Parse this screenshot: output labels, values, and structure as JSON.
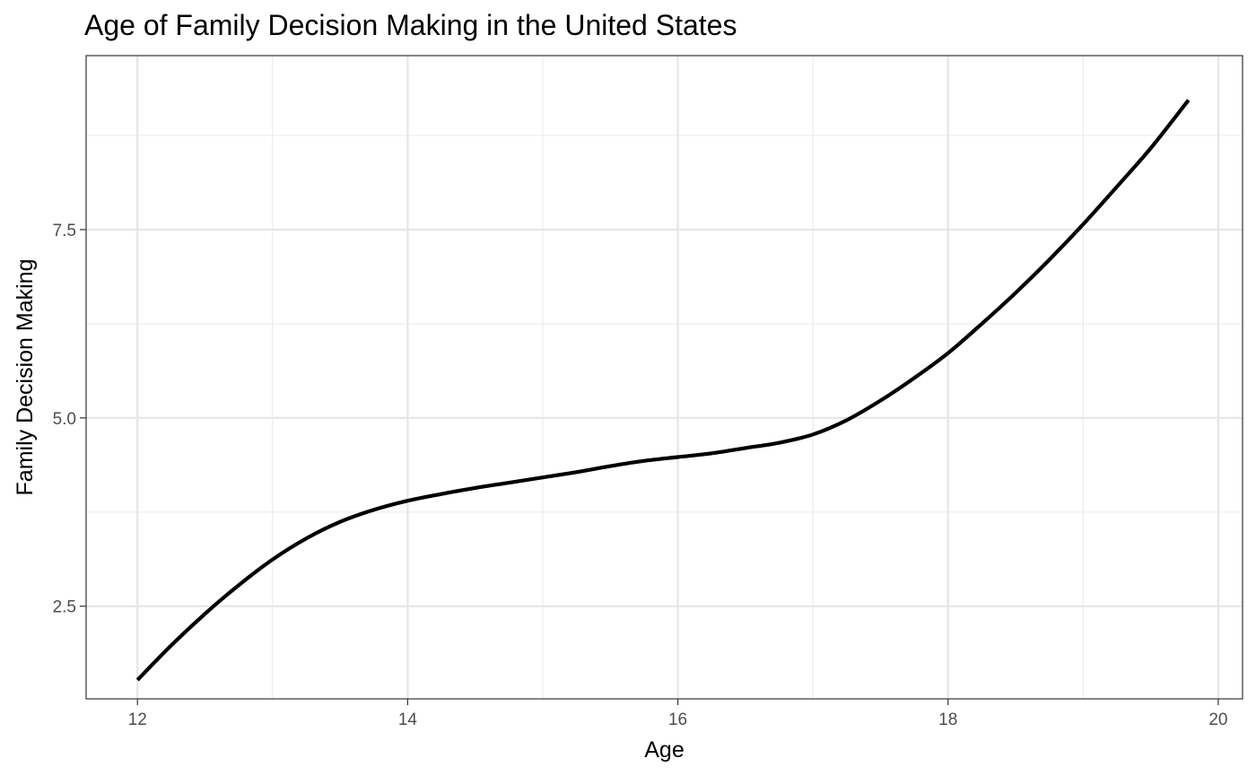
{
  "chart_data": {
    "type": "line",
    "title": "Age of Family Decision Making in the United States",
    "xlabel": "Age",
    "ylabel": "Family Decision Making",
    "xlim": [
      11.62,
      20.18
    ],
    "ylim": [
      1.27,
      9.81
    ],
    "x_ticks": [
      12,
      14,
      16,
      18,
      20
    ],
    "x_tick_labels": [
      "12",
      "14",
      "16",
      "18",
      "20"
    ],
    "y_ticks": [
      2.5,
      5.0,
      7.5
    ],
    "y_tick_labels": [
      "2.5",
      "5.0",
      "7.5"
    ],
    "grid": true,
    "legend": "none",
    "line_color": "#000000",
    "series": [
      {
        "x": [
          12.0,
          12.25,
          12.5,
          12.75,
          13.0,
          13.25,
          13.5,
          13.75,
          14.0,
          14.25,
          14.5,
          14.75,
          15.0,
          15.25,
          15.5,
          15.75,
          16.0,
          16.25,
          16.5,
          16.75,
          17.0,
          17.25,
          17.5,
          17.75,
          18.0,
          18.25,
          18.5,
          18.75,
          19.0,
          19.25,
          19.5,
          19.78
        ],
        "values": [
          1.52,
          1.98,
          2.4,
          2.78,
          3.12,
          3.4,
          3.62,
          3.78,
          3.9,
          3.99,
          4.07,
          4.14,
          4.21,
          4.28,
          4.36,
          4.43,
          4.48,
          4.53,
          4.6,
          4.67,
          4.78,
          4.97,
          5.23,
          5.53,
          5.86,
          6.25,
          6.66,
          7.1,
          7.57,
          8.07,
          8.58,
          9.22
        ]
      }
    ]
  }
}
